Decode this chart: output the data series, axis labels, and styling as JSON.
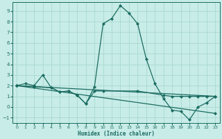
{
  "xlabel": "Humidex (Indice chaleur)",
  "background_color": "#c8ece8",
  "grid_color": "#a8d8d0",
  "line_color": "#1a6b60",
  "xlim": [
    -0.5,
    23.5
  ],
  "ylim": [
    -1.5,
    9.8
  ],
  "xticks": [
    0,
    1,
    2,
    3,
    4,
    5,
    6,
    7,
    8,
    9,
    10,
    11,
    12,
    13,
    14,
    15,
    16,
    17,
    18,
    19,
    20,
    21,
    22,
    23
  ],
  "yticks": [
    -1,
    0,
    1,
    2,
    3,
    4,
    5,
    6,
    7,
    8,
    9
  ],
  "series": [
    {
      "x": [
        0,
        1,
        2,
        3,
        4,
        5,
        6,
        7,
        8,
        9,
        10,
        11,
        12,
        13,
        14,
        15,
        16,
        17,
        18,
        19,
        20,
        21,
        22,
        23
      ],
      "y": [
        2.0,
        2.2,
        2.0,
        3.0,
        1.8,
        1.4,
        1.5,
        1.1,
        0.3,
        1.9,
        7.8,
        8.3,
        9.5,
        8.8,
        7.8,
        4.5,
        2.2,
        0.8,
        -0.3,
        -0.4,
        -1.2,
        0.0,
        0.4,
        1.0
      ]
    },
    {
      "x": [
        0,
        2,
        4,
        5,
        6,
        7,
        8,
        9,
        10,
        14,
        17,
        18,
        19,
        20,
        21,
        22,
        23
      ],
      "y": [
        2.0,
        1.9,
        1.8,
        1.4,
        1.5,
        1.1,
        0.3,
        1.5,
        1.5,
        1.5,
        1.1,
        1.0,
        1.0,
        1.0,
        1.0,
        1.0,
        1.0
      ]
    },
    {
      "x": [
        0,
        23
      ],
      "y": [
        2.0,
        -0.6
      ]
    },
    {
      "x": [
        0,
        23
      ],
      "y": [
        2.0,
        1.0
      ]
    }
  ]
}
